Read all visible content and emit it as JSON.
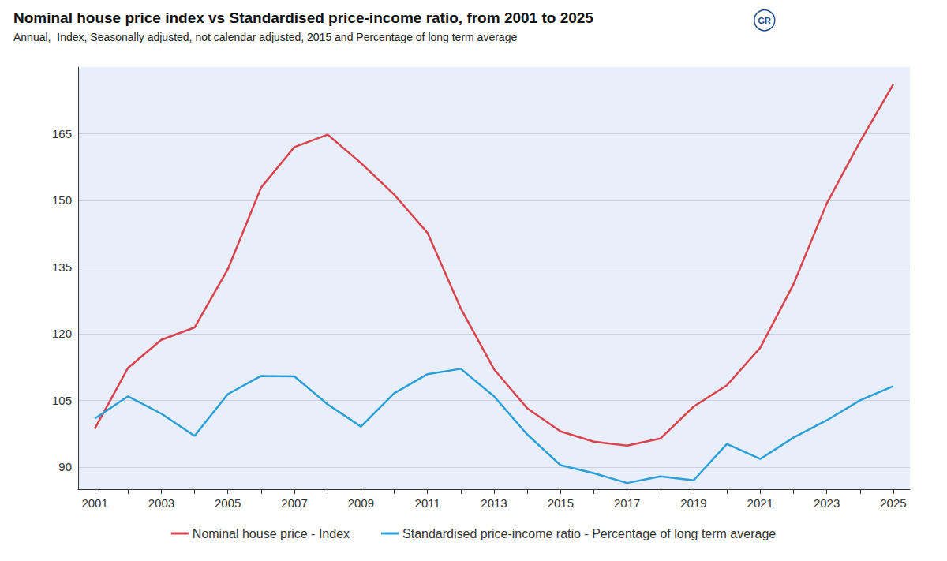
{
  "chart_data": {
    "type": "line",
    "title": "Nominal house price index vs Standardised price-income ratio, from 2001 to 2025",
    "subtitle": "Annual,  Index, Seasonally adjusted, not calendar adjusted, 2015 and Percentage of long term average",
    "annotations": [
      "GR"
    ],
    "categories": [
      "2001",
      null,
      "2003",
      null,
      "2005",
      null,
      "2007",
      null,
      "2009",
      null,
      "2011",
      null,
      "2013",
      null,
      "2015",
      null,
      "2017",
      null,
      "2019",
      null,
      "2021",
      null,
      "2023",
      null,
      "2025"
    ],
    "series": [
      {
        "name": "Nominal house price - Index",
        "color": "#d9434e",
        "values": [
          98.6,
          112.3,
          118.6,
          121.4,
          134.5,
          152.9,
          162.0,
          164.8,
          158.4,
          151.3,
          142.7,
          125.7,
          112.0,
          103.2,
          98.0,
          95.7,
          94.8,
          96.4,
          103.6,
          108.4,
          116.8,
          131.1,
          149.3,
          163.2,
          176.1
        ]
      },
      {
        "name": "Standardised price-income ratio - Percentage of long term average",
        "color": "#2b9fd8",
        "values": [
          100.9,
          105.9,
          102.0,
          97.0,
          106.4,
          110.5,
          110.4,
          104.1,
          99.1,
          106.6,
          110.9,
          112.1,
          105.9,
          97.3,
          90.4,
          88.6,
          86.4,
          87.9,
          87.0,
          95.2,
          91.8,
          96.6,
          100.5,
          105.0,
          108.2
        ]
      }
    ],
    "ylim": [
      85,
      180
    ],
    "yticks": [
      90,
      105,
      120,
      135,
      150,
      165
    ],
    "grid": true,
    "legend": "bottom"
  }
}
